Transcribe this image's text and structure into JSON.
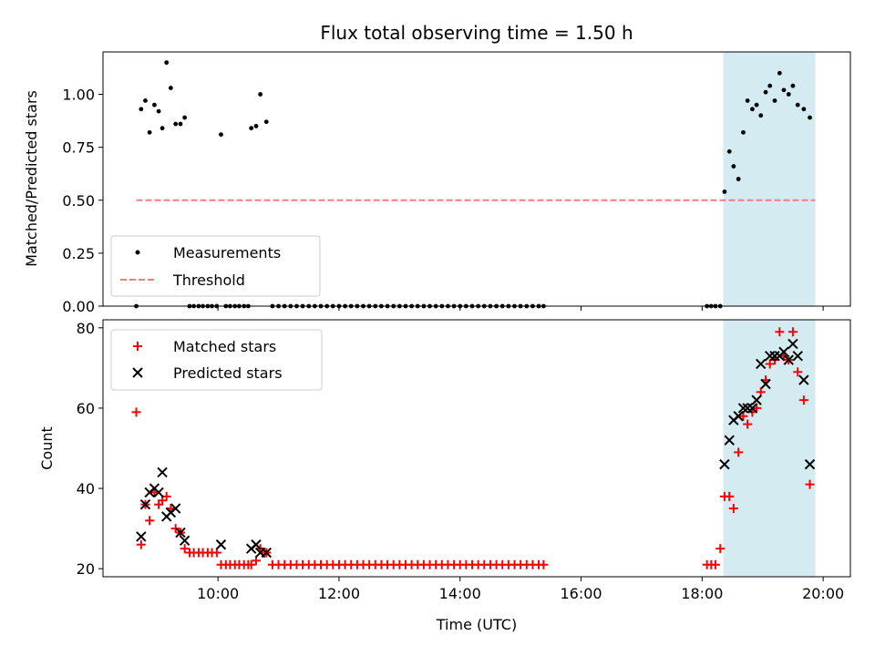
{
  "figure": {
    "title": "Flux total observing time = 1.50 h"
  },
  "chart_data": [
    {
      "type": "scatter",
      "panel": "top",
      "ylabel": "Matched/Predicted stars",
      "xlabel": "",
      "x_unit": "hours (UTC)",
      "xlim": [
        8.1,
        20.45
      ],
      "ylim": [
        0.0,
        1.2
      ],
      "yticks": [
        0.0,
        0.25,
        0.5,
        0.75,
        1.0
      ],
      "ytick_labels": [
        "0.00",
        "0.25",
        "0.50",
        "0.75",
        "1.00"
      ],
      "grid": false,
      "legend_position": "bottom-left",
      "shaded_region": {
        "x_start": 18.35,
        "x_end": 19.87,
        "color": "#d4ebf2"
      },
      "series": [
        {
          "name": "Measurements",
          "marker": "dot",
          "color": "#000000",
          "points": [
            [
              8.65,
              0.0
            ],
            [
              8.73,
              0.93
            ],
            [
              8.8,
              0.97
            ],
            [
              8.87,
              0.82
            ],
            [
              8.95,
              0.95
            ],
            [
              9.02,
              0.92
            ],
            [
              9.08,
              0.84
            ],
            [
              9.15,
              1.15
            ],
            [
              9.22,
              1.03
            ],
            [
              9.3,
              0.86
            ],
            [
              9.38,
              0.86
            ],
            [
              9.45,
              0.89
            ],
            [
              9.53,
              0.0
            ],
            [
              9.6,
              0.0
            ],
            [
              9.68,
              0.0
            ],
            [
              9.75,
              0.0
            ],
            [
              9.83,
              0.0
            ],
            [
              9.9,
              0.0
            ],
            [
              9.98,
              0.0
            ],
            [
              10.05,
              0.81
            ],
            [
              10.13,
              0.0
            ],
            [
              10.2,
              0.0
            ],
            [
              10.28,
              0.0
            ],
            [
              10.35,
              0.0
            ],
            [
              10.43,
              0.0
            ],
            [
              10.5,
              0.0
            ],
            [
              10.55,
              0.84
            ],
            [
              10.63,
              0.85
            ],
            [
              10.7,
              1.0
            ],
            [
              10.8,
              0.87
            ],
            [
              10.9,
              0.0
            ],
            [
              11.0,
              0.0
            ],
            [
              11.1,
              0.0
            ],
            [
              11.2,
              0.0
            ],
            [
              11.3,
              0.0
            ],
            [
              11.4,
              0.0
            ],
            [
              11.5,
              0.0
            ],
            [
              11.6,
              0.0
            ],
            [
              11.7,
              0.0
            ],
            [
              11.8,
              0.0
            ],
            [
              11.9,
              0.0
            ],
            [
              12.0,
              0.0
            ],
            [
              12.1,
              0.0
            ],
            [
              12.2,
              0.0
            ],
            [
              12.3,
              0.0
            ],
            [
              12.4,
              0.0
            ],
            [
              12.5,
              0.0
            ],
            [
              12.6,
              0.0
            ],
            [
              12.7,
              0.0
            ],
            [
              12.8,
              0.0
            ],
            [
              12.9,
              0.0
            ],
            [
              13.0,
              0.0
            ],
            [
              13.1,
              0.0
            ],
            [
              13.2,
              0.0
            ],
            [
              13.3,
              0.0
            ],
            [
              13.4,
              0.0
            ],
            [
              13.5,
              0.0
            ],
            [
              13.6,
              0.0
            ],
            [
              13.7,
              0.0
            ],
            [
              13.8,
              0.0
            ],
            [
              13.9,
              0.0
            ],
            [
              14.0,
              0.0
            ],
            [
              14.1,
              0.0
            ],
            [
              14.2,
              0.0
            ],
            [
              14.3,
              0.0
            ],
            [
              14.4,
              0.0
            ],
            [
              14.5,
              0.0
            ],
            [
              14.6,
              0.0
            ],
            [
              14.7,
              0.0
            ],
            [
              14.8,
              0.0
            ],
            [
              14.9,
              0.0
            ],
            [
              15.0,
              0.0
            ],
            [
              15.1,
              0.0
            ],
            [
              15.2,
              0.0
            ],
            [
              15.3,
              0.0
            ],
            [
              15.38,
              0.0
            ],
            [
              18.08,
              0.0
            ],
            [
              18.15,
              0.0
            ],
            [
              18.22,
              0.0
            ],
            [
              18.3,
              0.0
            ],
            [
              18.37,
              0.54
            ],
            [
              18.45,
              0.73
            ],
            [
              18.52,
              0.66
            ],
            [
              18.6,
              0.6
            ],
            [
              18.68,
              0.82
            ],
            [
              18.75,
              0.97
            ],
            [
              18.83,
              0.93
            ],
            [
              18.9,
              0.95
            ],
            [
              18.97,
              0.9
            ],
            [
              19.05,
              1.01
            ],
            [
              19.12,
              1.04
            ],
            [
              19.2,
              0.97
            ],
            [
              19.28,
              1.1
            ],
            [
              19.35,
              1.02
            ],
            [
              19.43,
              1.0
            ],
            [
              19.5,
              1.04
            ],
            [
              19.58,
              0.95
            ],
            [
              19.68,
              0.93
            ],
            [
              19.78,
              0.89
            ]
          ]
        },
        {
          "name": "Threshold",
          "line_style": "dashed",
          "color": "#f08080",
          "x": [
            8.65,
            19.87
          ],
          "y": [
            0.5,
            0.5
          ]
        }
      ]
    },
    {
      "type": "scatter",
      "panel": "bottom",
      "xlabel": "Time (UTC)",
      "ylabel": "Count",
      "x_unit": "hours (UTC)",
      "xlim": [
        8.1,
        20.45
      ],
      "ylim": [
        18,
        82
      ],
      "xticks": [
        10,
        12,
        14,
        16,
        18,
        20
      ],
      "xtick_labels": [
        "10:00",
        "12:00",
        "14:00",
        "16:00",
        "18:00",
        "20:00"
      ],
      "yticks": [
        20,
        40,
        60,
        80
      ],
      "ytick_labels": [
        "20",
        "40",
        "60",
        "80"
      ],
      "grid": false,
      "legend_position": "top-left",
      "shaded_region": {
        "x_start": 18.35,
        "x_end": 19.87,
        "color": "#d4ebf2"
      },
      "series": [
        {
          "name": "Matched stars",
          "marker": "plus",
          "color": "#ff0000",
          "points": [
            [
              8.65,
              59
            ],
            [
              8.73,
              26
            ],
            [
              8.8,
              36
            ],
            [
              8.87,
              32
            ],
            [
              8.95,
              39
            ],
            [
              9.02,
              36
            ],
            [
              9.08,
              37
            ],
            [
              9.15,
              38
            ],
            [
              9.22,
              35
            ],
            [
              9.3,
              30
            ],
            [
              9.38,
              29
            ],
            [
              9.45,
              25
            ],
            [
              9.53,
              24
            ],
            [
              9.6,
              24
            ],
            [
              9.68,
              24
            ],
            [
              9.75,
              24
            ],
            [
              9.83,
              24
            ],
            [
              9.9,
              24
            ],
            [
              9.98,
              24
            ],
            [
              10.05,
              21
            ],
            [
              10.13,
              21
            ],
            [
              10.2,
              21
            ],
            [
              10.28,
              21
            ],
            [
              10.35,
              21
            ],
            [
              10.43,
              21
            ],
            [
              10.5,
              21
            ],
            [
              10.55,
              21
            ],
            [
              10.63,
              22
            ],
            [
              10.7,
              25
            ],
            [
              10.8,
              24
            ],
            [
              10.9,
              21
            ],
            [
              11.0,
              21
            ],
            [
              11.1,
              21
            ],
            [
              11.2,
              21
            ],
            [
              11.3,
              21
            ],
            [
              11.4,
              21
            ],
            [
              11.5,
              21
            ],
            [
              11.6,
              21
            ],
            [
              11.7,
              21
            ],
            [
              11.8,
              21
            ],
            [
              11.9,
              21
            ],
            [
              12.0,
              21
            ],
            [
              12.1,
              21
            ],
            [
              12.2,
              21
            ],
            [
              12.3,
              21
            ],
            [
              12.4,
              21
            ],
            [
              12.5,
              21
            ],
            [
              12.6,
              21
            ],
            [
              12.7,
              21
            ],
            [
              12.8,
              21
            ],
            [
              12.9,
              21
            ],
            [
              13.0,
              21
            ],
            [
              13.1,
              21
            ],
            [
              13.2,
              21
            ],
            [
              13.3,
              21
            ],
            [
              13.4,
              21
            ],
            [
              13.5,
              21
            ],
            [
              13.6,
              21
            ],
            [
              13.7,
              21
            ],
            [
              13.8,
              21
            ],
            [
              13.9,
              21
            ],
            [
              14.0,
              21
            ],
            [
              14.1,
              21
            ],
            [
              14.2,
              21
            ],
            [
              14.3,
              21
            ],
            [
              14.4,
              21
            ],
            [
              14.5,
              21
            ],
            [
              14.6,
              21
            ],
            [
              14.7,
              21
            ],
            [
              14.8,
              21
            ],
            [
              14.9,
              21
            ],
            [
              15.0,
              21
            ],
            [
              15.1,
              21
            ],
            [
              15.2,
              21
            ],
            [
              15.3,
              21
            ],
            [
              15.38,
              21
            ],
            [
              18.08,
              21
            ],
            [
              18.15,
              21
            ],
            [
              18.22,
              21
            ],
            [
              18.3,
              25
            ],
            [
              18.37,
              38
            ],
            [
              18.45,
              38
            ],
            [
              18.52,
              35
            ],
            [
              18.6,
              49
            ],
            [
              18.68,
              58
            ],
            [
              18.75,
              56
            ],
            [
              18.83,
              59
            ],
            [
              18.9,
              60
            ],
            [
              18.97,
              64
            ],
            [
              19.05,
              67
            ],
            [
              19.12,
              71
            ],
            [
              19.2,
              72
            ],
            [
              19.28,
              79
            ],
            [
              19.35,
              73
            ],
            [
              19.43,
              72
            ],
            [
              19.5,
              79
            ],
            [
              19.58,
              69
            ],
            [
              19.68,
              62
            ],
            [
              19.78,
              41
            ]
          ]
        },
        {
          "name": "Predicted stars",
          "marker": "x",
          "color": "#000000",
          "points": [
            [
              8.73,
              28
            ],
            [
              8.8,
              36
            ],
            [
              8.87,
              39
            ],
            [
              8.95,
              40
            ],
            [
              9.02,
              39
            ],
            [
              9.08,
              44
            ],
            [
              9.15,
              33
            ],
            [
              9.22,
              34
            ],
            [
              9.3,
              35
            ],
            [
              9.38,
              29
            ],
            [
              9.45,
              27
            ],
            [
              10.05,
              26
            ],
            [
              10.55,
              25
            ],
            [
              10.63,
              26
            ],
            [
              10.7,
              24
            ],
            [
              10.8,
              24
            ],
            [
              18.37,
              46
            ],
            [
              18.45,
              52
            ],
            [
              18.52,
              57
            ],
            [
              18.6,
              58
            ],
            [
              18.68,
              60
            ],
            [
              18.75,
              60
            ],
            [
              18.83,
              60
            ],
            [
              18.9,
              62
            ],
            [
              18.97,
              71
            ],
            [
              19.05,
              66
            ],
            [
              19.12,
              73
            ],
            [
              19.2,
              73
            ],
            [
              19.28,
              73
            ],
            [
              19.35,
              74
            ],
            [
              19.43,
              72
            ],
            [
              19.5,
              76
            ],
            [
              19.58,
              73
            ],
            [
              19.68,
              67
            ],
            [
              19.78,
              46
            ]
          ]
        }
      ]
    }
  ]
}
